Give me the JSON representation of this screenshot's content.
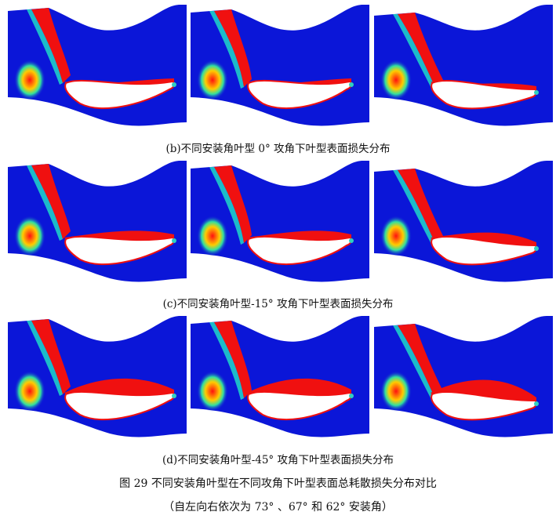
{
  "rows": [
    {
      "caption": "(b)不同安装角叶型 0°  攻角下叶型表面损失分布"
    },
    {
      "caption": "(c)不同安装角叶型-15°  攻角下叶型表面损失分布"
    },
    {
      "caption": "(d)不同安装角叶型-45°  攻角下叶型表面损失分布"
    }
  ],
  "figure": {
    "title": "图  29    不同安装角叶型在不同攻角下叶型表面总耗散损失分布对比",
    "subtitle": "（自左向右依次为 73°  、67°  和 62°  安装角）"
  },
  "colors": {
    "background_flow": "#0b16d8",
    "high_loss": "#f01010",
    "blade": "#ffffff"
  }
}
